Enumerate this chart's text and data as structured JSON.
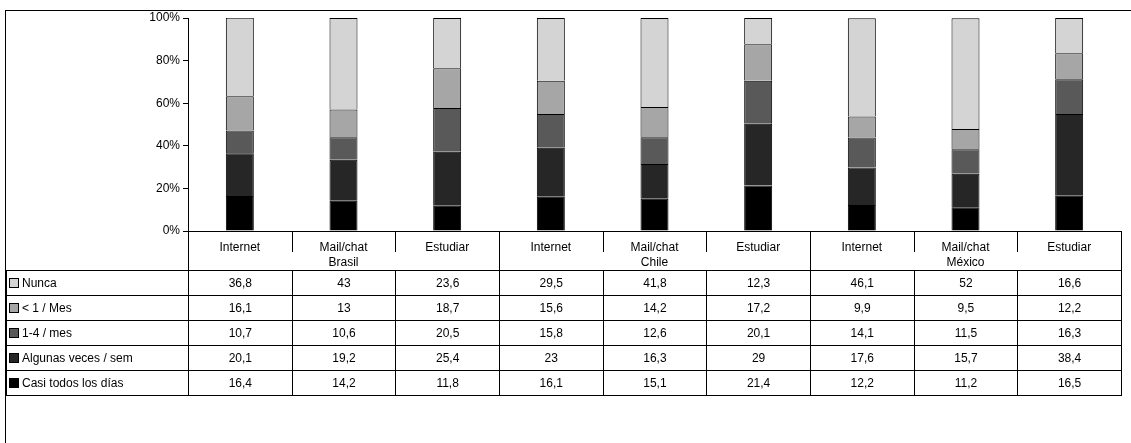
{
  "chart_data": {
    "type": "bar",
    "stacked": true,
    "categories": [
      "Internet",
      "Mail/chat",
      "Estudiar",
      "Internet",
      "Mail/chat",
      "Estudiar",
      "Internet",
      "Mail/chat",
      "Estudiar"
    ],
    "series": [
      {
        "name": "Casi todos los días",
        "color": "#000000",
        "values": [
          16.4,
          14.2,
          11.8,
          16.1,
          15.1,
          21.4,
          12.2,
          11.2,
          16.5
        ],
        "value_labels": [
          "16,4",
          "14,2",
          "11,8",
          "16,1",
          "15,1",
          "21,4",
          "12,2",
          "11,2",
          "16,5"
        ]
      },
      {
        "name": "Algunas veces / sem",
        "color": "#262626",
        "values": [
          20.1,
          19.2,
          25.4,
          23,
          16.3,
          29,
          17.6,
          15.7,
          38.4
        ],
        "value_labels": [
          "20,1",
          "19,2",
          "25,4",
          "23",
          "16,3",
          "29",
          "17,6",
          "15,7",
          "38,4"
        ]
      },
      {
        "name": "1-4 / mes",
        "color": "#595959",
        "values": [
          10.7,
          10.6,
          20.5,
          15.8,
          12.6,
          20.1,
          14.1,
          11.5,
          16.3
        ],
        "value_labels": [
          "10,7",
          "10,6",
          "20,5",
          "15,8",
          "12,6",
          "20,1",
          "14,1",
          "11,5",
          "16,3"
        ]
      },
      {
        "name": "< 1 / Mes",
        "color": "#a6a6a6",
        "values": [
          16.1,
          13,
          18.7,
          15.6,
          14.2,
          17.2,
          9.9,
          9.5,
          12.2
        ],
        "value_labels": [
          "16,1",
          "13",
          "18,7",
          "15,6",
          "14,2",
          "17,2",
          "9,9",
          "9,5",
          "12,2"
        ]
      },
      {
        "name": "Nunca",
        "color": "#d4d4d4",
        "values": [
          36.8,
          43,
          23.6,
          29.5,
          41.8,
          12.3,
          46.1,
          52,
          16.6
        ],
        "value_labels": [
          "36,8",
          "43",
          "23,6",
          "29,5",
          "41,8",
          "12,3",
          "46,1",
          "52",
          "16,6"
        ]
      }
    ],
    "ylim": [
      0,
      100
    ],
    "yticks": [
      {
        "value": 0,
        "label": "0%"
      },
      {
        "value": 20,
        "label": "20%"
      },
      {
        "value": 40,
        "label": "40%"
      },
      {
        "value": 60,
        "label": "60%"
      },
      {
        "value": 80,
        "label": "80%"
      },
      {
        "value": 100,
        "label": "100%"
      }
    ],
    "annotations": [
      "Brasil",
      "Chile",
      "México"
    ],
    "grid": false,
    "legend": "bottom"
  }
}
